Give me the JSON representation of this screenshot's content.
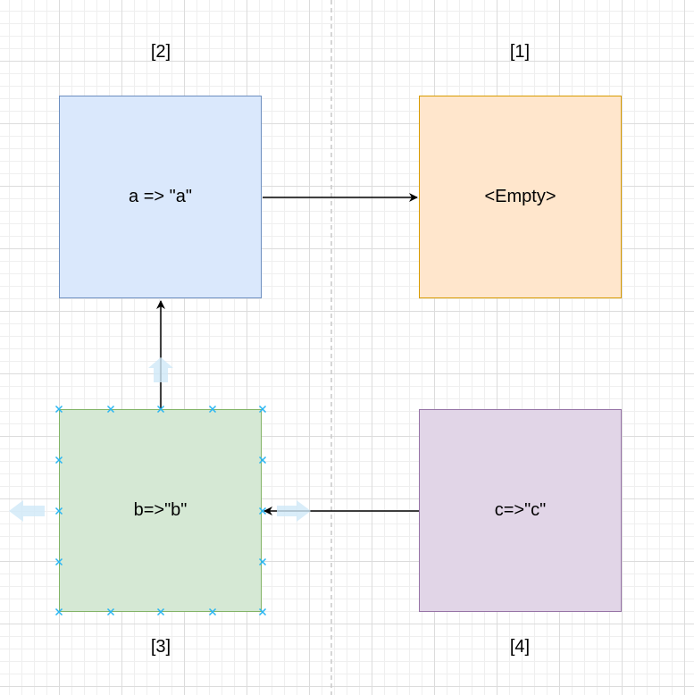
{
  "labels": {
    "n2": "[2]",
    "n1": "[1]",
    "n3": "[3]",
    "n4": "[4]"
  },
  "nodes": {
    "a": {
      "text": "a => \"a\"",
      "fill": "#dae8fc",
      "stroke": "#6c8ebf"
    },
    "empty": {
      "text": "<Empty>",
      "fill": "#ffe6cc",
      "stroke": "#d79b00"
    },
    "b": {
      "text": "b=>\"b\"",
      "fill": "#d5e8d4",
      "stroke": "#82b366"
    },
    "c": {
      "text": "c=>\"c\"",
      "fill": "#e1d5e7",
      "stroke": "#9673a6"
    }
  },
  "colors": {
    "edge": "#000000",
    "selection": "#29b6f2",
    "guide": "#c8c8c8"
  }
}
